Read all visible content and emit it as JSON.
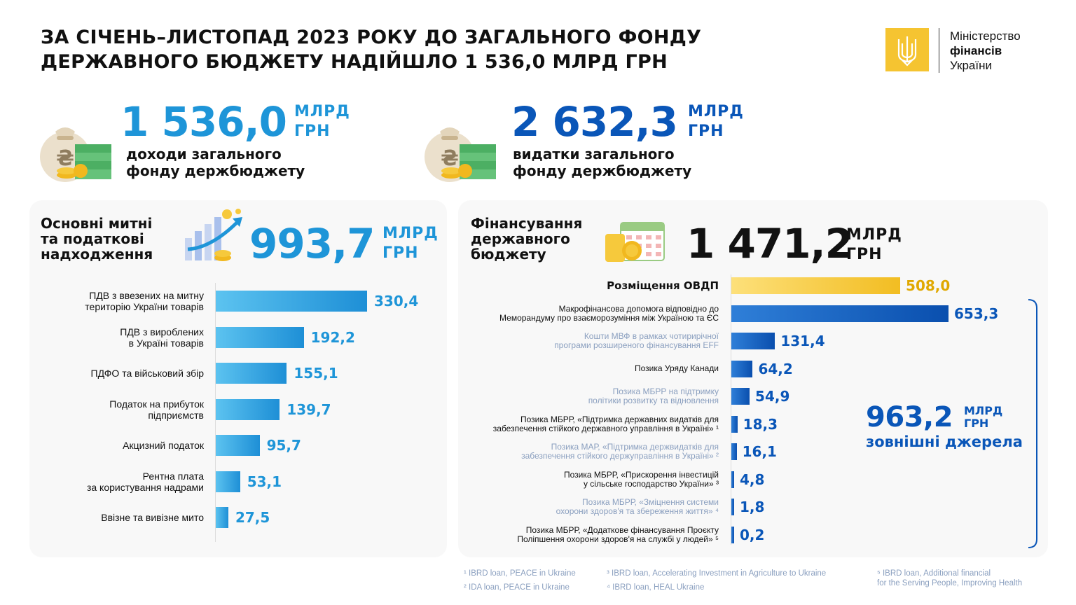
{
  "title": {
    "line1": "ЗА СІЧЕНЬ–ЛИСТОПАД 2023 РОКУ ДО ЗАГАЛЬНОГО ФОНДУ",
    "line2": "ДЕРЖАВНОГО БЮДЖЕТУ НАДІЙШЛО 1 536,0 МЛРД ГРН"
  },
  "logo": {
    "line1": "Міністерство",
    "line2": "фінансів",
    "line3": "України",
    "icon": "trident-icon",
    "color": "#f5c431"
  },
  "kpis": [
    {
      "value": "1 536,0",
      "unit1": "МЛРД",
      "unit2": "ГРН",
      "desc1": "доходи загального",
      "desc2": "фонду держбюджету",
      "icon": "money-bag-icon",
      "color": "#1e95d8"
    },
    {
      "value": "2 632,3",
      "unit1": "МЛРД",
      "unit2": "ГРН",
      "desc1": "видатки загального",
      "desc2": "фонду держбюджету",
      "icon": "money-bag-icon",
      "color": "#0a56b8"
    }
  ],
  "revenue_panel": {
    "title1": "Основні митні",
    "title2": "та податкові",
    "title3": "надходження",
    "total": "993,7",
    "unit1": "МЛРД",
    "unit2": "ГРН",
    "icon": "growth-chart-icon"
  },
  "financing_panel": {
    "title1": "Фінансування",
    "title2": "державного",
    "title3": "бюджету",
    "total": "1 471,2",
    "unit1": "МЛРД",
    "unit2": "ГРН",
    "icon": "calendar-coins-icon",
    "external_total": "963,2",
    "external_unit1": "МЛРД",
    "external_unit2": "ГРН",
    "external_desc": "зовнішні джерела"
  },
  "chart_data": [
    {
      "type": "bar",
      "orientation": "horizontal",
      "categories": [
        [
          "ПДВ з ввезених на митну",
          "територію України товарів"
        ],
        [
          "ПДВ з вироблених",
          "в Україні товарів"
        ],
        [
          "ПДФО та військовий збір"
        ],
        [
          "Податок на прибуток",
          "підприємств"
        ],
        [
          "Акцизний податок"
        ],
        [
          "Рентна плата",
          "за користування надрами"
        ],
        [
          "Ввізне та вивізне мито"
        ]
      ],
      "values": [
        330.4,
        192.2,
        155.1,
        139.7,
        95.7,
        53.1,
        27.5
      ],
      "labels": [
        "330,4",
        "192,2",
        "155,1",
        "139,7",
        "95,7",
        "53,1",
        "27,5"
      ],
      "color": "#1e95d8"
    },
    {
      "type": "bar",
      "orientation": "horizontal",
      "categories": [
        [
          "Розміщення ОВДП"
        ],
        [
          "Макрофінансова допомога відповідно до",
          "Меморандуму про взаєморозуміння між Україною та ЄС"
        ],
        [
          "Кошти МВФ в рамках чотирирічної",
          "програми розширеного фінансування EFF"
        ],
        [
          "Позика Уряду Канади"
        ],
        [
          "Позика МБРР на підтримку",
          "політики розвитку та відновлення"
        ],
        [
          "Позика МБРР, «Підтримка державних видатків для",
          "забезпечення стійкого державного управління в Україні» ¹"
        ],
        [
          "Позика МАР, «Підтримка держвидатків для",
          "забезпечення стійкого держуправління в Україні» ²"
        ],
        [
          "Позика МБРР, «Прискорення інвестицій",
          "у сільське господарство України» ³"
        ],
        [
          "Позика МБРР, «Зміцнення системи",
          "охорони здоров'я та збереження життя» ⁴"
        ],
        [
          "Позика МБРР, «Додаткове фінансування Проєкту",
          "Поліпшення охорони здоров'я на службі у людей» ⁵"
        ]
      ],
      "values": [
        508.0,
        653.3,
        131.4,
        64.2,
        54.9,
        18.3,
        16.1,
        4.8,
        1.8,
        0.2
      ],
      "labels": [
        "508,0",
        "653,3",
        "131,4",
        "64,2",
        "54,9",
        "18,3",
        "16,1",
        "4,8",
        "1,8",
        "0,2"
      ],
      "label_style": [
        "bold",
        "normal",
        "grey",
        "normal",
        "grey",
        "normal",
        "grey",
        "normal",
        "grey",
        "normal"
      ],
      "colors": {
        "ovdp": "#f5c431",
        "ovdp_label": "#e0a800",
        "external": "#0a56b8"
      }
    }
  ],
  "footnotes": [
    "¹ IBRD loan, PEACE in Ukraine",
    "² IDA loan, PEACE in Ukraine",
    "³ IBRD loan, Accelerating Investment in Agriculture to Ukraine",
    "⁴ IBRD loan, HEAL Ukraine",
    "⁵ IBRD loan, Additional financial",
    "for the Serving People, Improving Health"
  ]
}
